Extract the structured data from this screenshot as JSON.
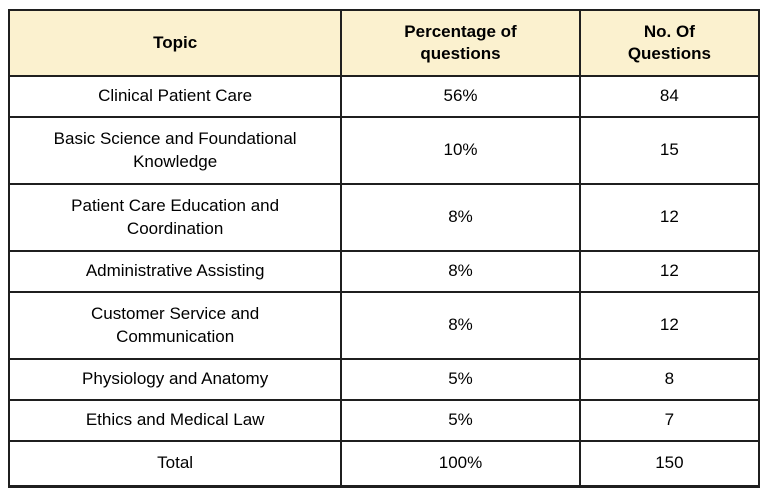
{
  "colors": {
    "page_bg": "#ffffff",
    "header_bg": "#fbf1cf",
    "border": "#1f1f1f",
    "text": "#000000"
  },
  "table": {
    "columns": [
      {
        "label": "Topic"
      },
      {
        "label": "Percentage of\nquestions"
      },
      {
        "label": "No. Of\nQuestions"
      }
    ],
    "rows": [
      {
        "topic": "Clinical Patient Care",
        "percentage": "56%",
        "count": "84"
      },
      {
        "topic": "Basic Science and Foundational\nKnowledge",
        "percentage": "10%",
        "count": "15"
      },
      {
        "topic": "Patient Care Education and\nCoordination",
        "percentage": "8%",
        "count": "12"
      },
      {
        "topic": "Administrative Assisting",
        "percentage": "8%",
        "count": "12"
      },
      {
        "topic": "Customer Service and\nCommunication",
        "percentage": "8%",
        "count": "12"
      },
      {
        "topic": "Physiology and Anatomy",
        "percentage": "5%",
        "count": "8"
      },
      {
        "topic": "Ethics and Medical Law",
        "percentage": "5%",
        "count": "7"
      },
      {
        "topic": "Total",
        "percentage": "100%",
        "count": "150"
      }
    ]
  },
  "chart_data": {
    "type": "table",
    "columns": [
      "Topic",
      "Percentage of questions",
      "No. Of Questions"
    ],
    "rows": [
      [
        "Clinical Patient Care",
        "56%",
        84
      ],
      [
        "Basic Science and Foundational Knowledge",
        "10%",
        15
      ],
      [
        "Patient Care Education and Coordination",
        "8%",
        12
      ],
      [
        "Administrative Assisting",
        "8%",
        12
      ],
      [
        "Customer Service and Communication",
        "8%",
        12
      ],
      [
        "Physiology and Anatomy",
        "5%",
        8
      ],
      [
        "Ethics and Medical Law",
        "5%",
        7
      ],
      [
        "Total",
        "100%",
        150
      ]
    ],
    "totals_row_included": true,
    "header_background": "#fbf1cf",
    "grid": "all-borders"
  }
}
